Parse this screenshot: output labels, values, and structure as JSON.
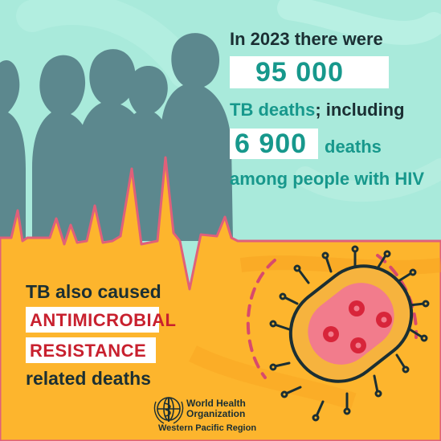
{
  "stats": {
    "intro": "In 2023 there were",
    "tb_deaths_value": "95 000",
    "tb_deaths_prefix": "TB deaths",
    "tb_deaths_suffix": "; including",
    "hiv_deaths_value": "6 900",
    "hiv_deaths_label": "deaths",
    "hiv_line": "among people with HIV"
  },
  "amr": {
    "line1": "TB also caused",
    "line2": "ANTIMICROBIAL",
    "line3": "RESISTANCE",
    "line4": "related deaths"
  },
  "logo": {
    "name_line1": "World Health",
    "name_line2": "Organization",
    "region": "Western Pacific Region"
  },
  "colors": {
    "sky": "#a9eadb",
    "ground": "#fdb52d",
    "silhouette": "#5c888e",
    "accent_teal": "#17988c",
    "accent_red": "#c8202e",
    "pulse_line": "#e0607a"
  },
  "icons": {
    "figures": "people-silhouettes-icon",
    "bacterium": "tb-bacterium-icon",
    "who_emblem": "who-emblem-icon"
  }
}
